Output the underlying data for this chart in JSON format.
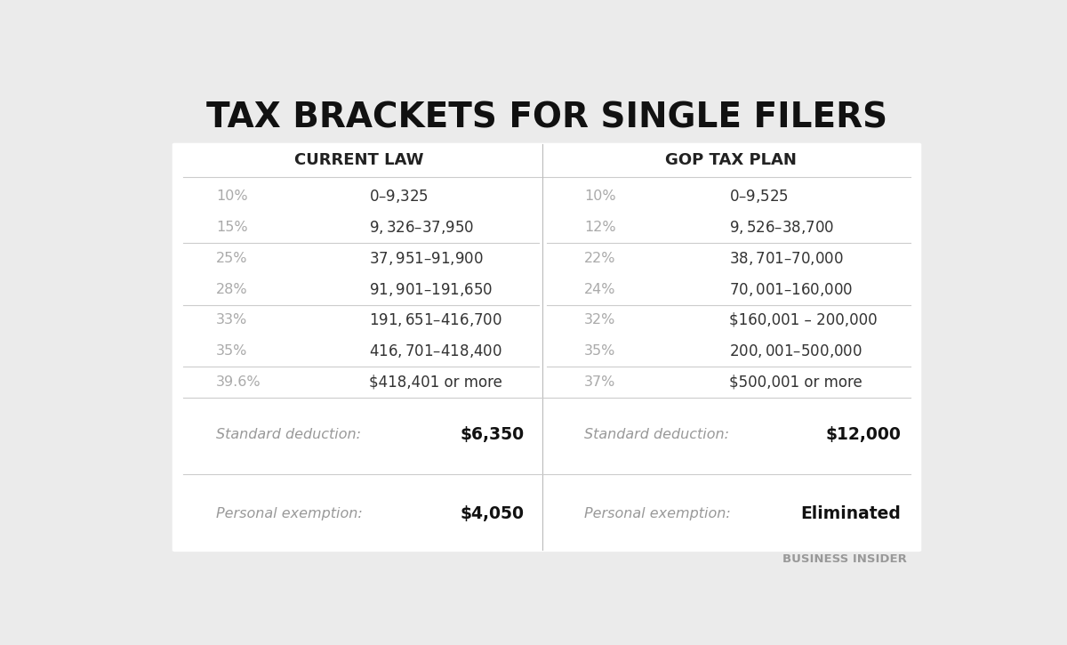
{
  "title": "TAX BRACKETS FOR SINGLE FILERS",
  "title_fontsize": 28,
  "background_color": "#ebebeb",
  "col_header_left": "CURRENT LAW",
  "col_header_right": "GOP TAX PLAN",
  "header_fontsize": 13,
  "current_law": [
    {
      "rate": "10%",
      "range": "$0 – $9,325"
    },
    {
      "rate": "15%",
      "range": "$9,326 – $37,950"
    },
    {
      "rate": "25%",
      "range": "$37,951 – $91,900"
    },
    {
      "rate": "28%",
      "range": "$91,901 – $191,650"
    },
    {
      "rate": "33%",
      "range": "$191,651 – $416,700"
    },
    {
      "rate": "35%",
      "range": "$416,701 – $418,400"
    },
    {
      "rate": "39.6%",
      "range": "$418,401 or more"
    }
  ],
  "gop_plan": [
    {
      "rate": "10%",
      "range": "$0 – $9,525"
    },
    {
      "rate": "12%",
      "range": "$9,526 – $38,700"
    },
    {
      "rate": "22%",
      "range": "$38,701 – $70,000"
    },
    {
      "rate": "24%",
      "range": "$70,001 – $160,000"
    },
    {
      "rate": "32%",
      "range": "$160,001 – 200,000"
    },
    {
      "rate": "35%",
      "range": "$200,001 – $500,000"
    },
    {
      "rate": "37%",
      "range": "$500,001 or more"
    }
  ],
  "current_deduction": "$6,350",
  "current_exemption": "$4,050",
  "gop_deduction": "$12,000",
  "gop_exemption": "Eliminated",
  "rate_color": "#aaaaaa",
  "range_color": "#333333",
  "label_color": "#999999",
  "value_color": "#111111",
  "divider_color": "#cccccc",
  "center_line_color": "#bbbbbb",
  "footer_text": "BUSINESS INSIDER",
  "footer_color": "#999999"
}
